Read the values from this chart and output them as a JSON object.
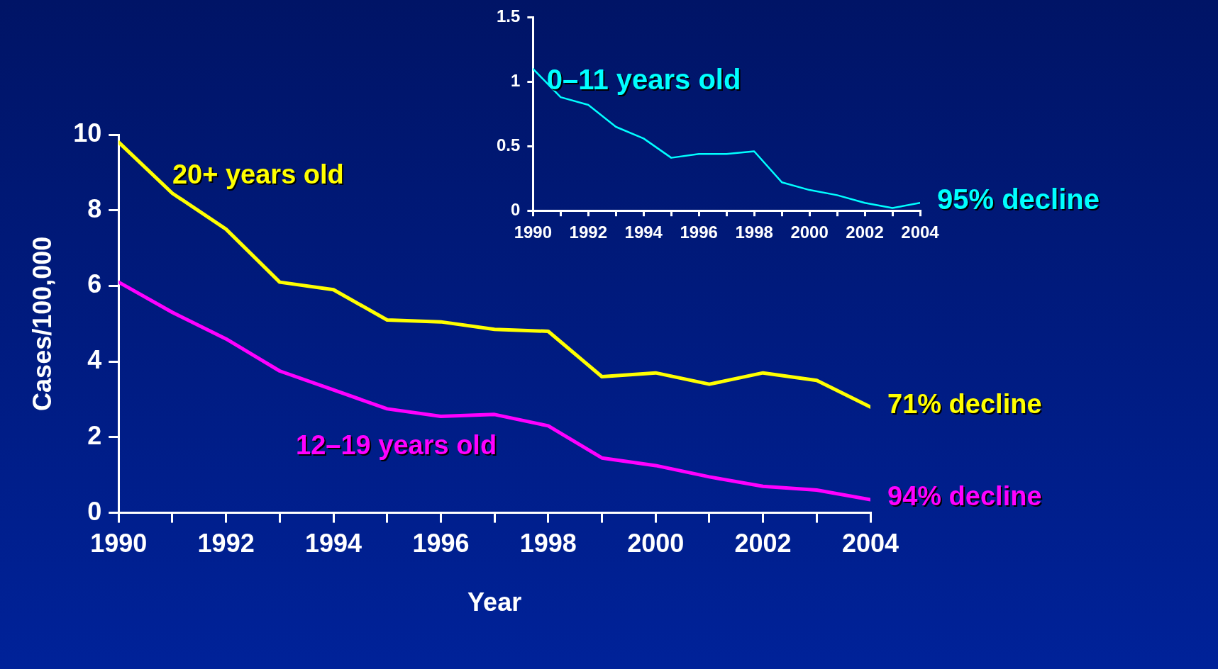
{
  "chart_data": [
    {
      "type": "line",
      "xlabel": "Year",
      "ylabel": "Cases/100,000",
      "x": [
        1990,
        1991,
        1992,
        1993,
        1994,
        1995,
        1996,
        1997,
        1998,
        1999,
        2000,
        2001,
        2002,
        2003,
        2004
      ],
      "series": [
        {
          "name": "20+ years old",
          "color": "#ffff00",
          "values": [
            9.8,
            8.45,
            7.5,
            6.1,
            5.9,
            5.1,
            5.05,
            4.85,
            4.8,
            3.6,
            3.7,
            3.4,
            3.7,
            3.5,
            2.8
          ]
        },
        {
          "name": "12–19 years old",
          "color": "#ff00ff",
          "values": [
            6.1,
            5.3,
            4.6,
            3.75,
            3.25,
            2.75,
            2.55,
            2.6,
            2.3,
            1.45,
            1.25,
            0.95,
            0.7,
            0.6,
            0.35
          ]
        }
      ],
      "xlim": [
        1990,
        2004
      ],
      "xticks": [
        1990,
        {
          "value": 1991,
          "label": null
        },
        1992,
        {
          "value": 1993,
          "label": null
        },
        1994,
        {
          "value": 1995,
          "label": null
        },
        1996,
        {
          "value": 1997,
          "label": null
        },
        1998,
        {
          "value": 1999,
          "label": null
        },
        2000,
        {
          "value": 2001,
          "label": null
        },
        2002,
        {
          "value": 2003,
          "label": null
        },
        2004
      ],
      "ylim": [
        0,
        10
      ],
      "yticks": [
        0,
        2,
        4,
        6,
        8,
        10
      ],
      "grid": false,
      "legend": false,
      "annotations": [
        "71% decline",
        "94% decline"
      ]
    },
    {
      "type": "line",
      "x": [
        1990,
        1991,
        1992,
        1993,
        1994,
        1995,
        1996,
        1997,
        1998,
        1999,
        2000,
        2001,
        2002,
        2003,
        2004
      ],
      "series": [
        {
          "name": "0–11 years old",
          "color": "#00ffff",
          "values": [
            1.1,
            0.88,
            0.82,
            0.65,
            0.56,
            0.41,
            0.44,
            0.44,
            0.46,
            0.22,
            0.16,
            0.12,
            0.06,
            0.02,
            0.06
          ]
        }
      ],
      "xlim": [
        1990,
        2004
      ],
      "xticks": [
        1990,
        {
          "value": 1991,
          "label": null
        },
        1992,
        {
          "value": 1993,
          "label": null
        },
        1994,
        {
          "value": 1995,
          "label": null
        },
        1996,
        {
          "value": 1997,
          "label": null
        },
        1998,
        {
          "value": 1999,
          "label": null
        },
        2000,
        {
          "value": 2001,
          "label": null
        },
        2002,
        {
          "value": 2003,
          "label": null
        },
        2004
      ],
      "ylim": [
        0,
        1.5
      ],
      "yticks": [
        0,
        0.5,
        1,
        1.5
      ],
      "grid": false,
      "legend": false,
      "annotations": [
        "95% decline"
      ]
    }
  ]
}
